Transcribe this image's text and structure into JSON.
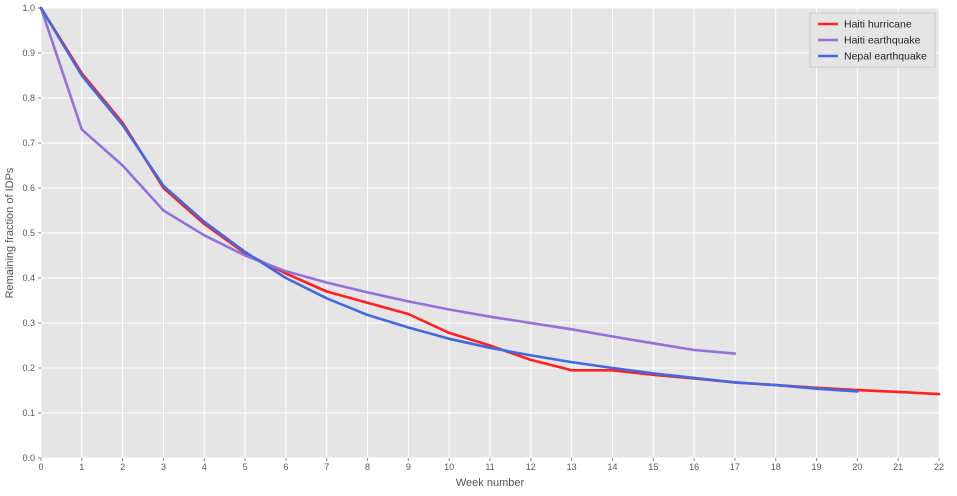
{
  "chart_data": {
    "type": "line",
    "title": "",
    "xlabel": "Week number",
    "ylabel": "Remaining fraction of IDPs",
    "xlim": [
      0,
      22
    ],
    "ylim": [
      0.0,
      1.0
    ],
    "xticks": [
      0,
      1,
      2,
      3,
      4,
      5,
      6,
      7,
      8,
      9,
      10,
      11,
      12,
      13,
      14,
      15,
      16,
      17,
      18,
      19,
      20,
      21,
      22
    ],
    "yticks": [
      0.0,
      0.1,
      0.2,
      0.3,
      0.4,
      0.5,
      0.6,
      0.7,
      0.8,
      0.9,
      1.0
    ],
    "xtick_labels": [
      "0",
      "1",
      "2",
      "3",
      "4",
      "5",
      "6",
      "7",
      "8",
      "9",
      "10",
      "11",
      "12",
      "13",
      "14",
      "15",
      "16",
      "17",
      "18",
      "19",
      "20",
      "21",
      "22"
    ],
    "ytick_labels": [
      "0.0",
      "0.1",
      "0.2",
      "0.3",
      "0.4",
      "0.5",
      "0.6",
      "0.7",
      "0.8",
      "0.9",
      "1.0"
    ],
    "grid": true,
    "legend_position": "top-right",
    "background_color": "#e5e5e5",
    "series": [
      {
        "name": "Haiti hurricane",
        "color": "#ff2020",
        "x": [
          0,
          1,
          2,
          3,
          4,
          5,
          6,
          7,
          8,
          9,
          10,
          11,
          12,
          13,
          14,
          15,
          16,
          17,
          18,
          19,
          20,
          21,
          22
        ],
        "y": [
          1.0,
          0.855,
          0.745,
          0.6,
          0.52,
          0.455,
          0.41,
          0.37,
          0.345,
          0.32,
          0.278,
          0.25,
          0.218,
          0.195,
          0.195,
          0.185,
          0.177,
          0.168,
          0.162,
          0.156,
          0.151,
          0.147,
          0.142
        ]
      },
      {
        "name": "Haiti earthquake",
        "color": "#9370db",
        "x": [
          0,
          1,
          2,
          3,
          4,
          5,
          6,
          7,
          8,
          9,
          10,
          11,
          12,
          13,
          14,
          15,
          16,
          17
        ],
        "y": [
          1.0,
          0.73,
          0.65,
          0.55,
          0.495,
          0.45,
          0.415,
          0.39,
          0.368,
          0.348,
          0.33,
          0.314,
          0.3,
          0.286,
          0.27,
          0.255,
          0.24,
          0.232
        ]
      },
      {
        "name": "Nepal earthquake",
        "color": "#4169e1",
        "x": [
          0,
          1,
          2,
          3,
          4,
          5,
          6,
          7,
          8,
          9,
          10,
          11,
          12,
          13,
          14,
          15,
          16,
          17,
          18,
          19,
          20
        ],
        "y": [
          1.0,
          0.85,
          0.74,
          0.605,
          0.525,
          0.458,
          0.4,
          0.355,
          0.318,
          0.29,
          0.265,
          0.245,
          0.228,
          0.213,
          0.2,
          0.188,
          0.178,
          0.168,
          0.162,
          0.154,
          0.148
        ]
      }
    ]
  }
}
